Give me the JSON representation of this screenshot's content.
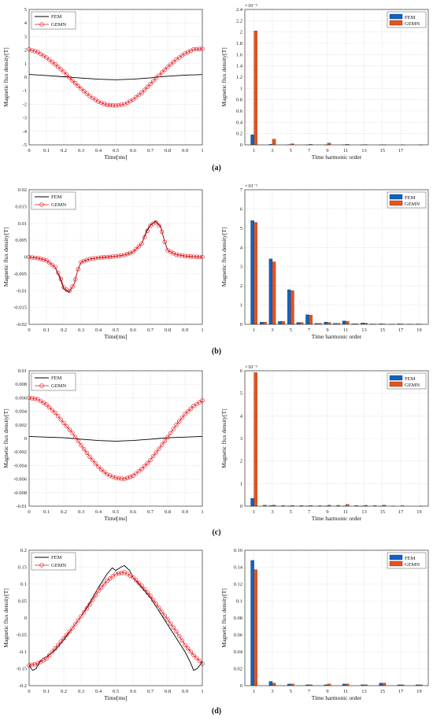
{
  "colors": {
    "fem_line": "#000000",
    "gemn_line": "#e8141b",
    "bar_fem": "#0f62c6",
    "bar_gemn": "#e8531c",
    "grid": "#d6d6d6"
  },
  "chart_data": [
    {
      "type": "line",
      "panel": "(a)",
      "xlabel": "Time[ms]",
      "ylabel": "Magnetic flux density[T]",
      "xlim": [
        0,
        1
      ],
      "ylim": [
        -5,
        5
      ],
      "grid": true,
      "legend": "top-left",
      "xticks": [
        "0",
        "0.1",
        "0.2",
        "0.3",
        "0.4",
        "0.5",
        "0.6",
        "0.7",
        "0.8",
        "0.9",
        "1"
      ],
      "yticks": [
        "-5",
        "-4",
        "-3",
        "-2",
        "-1",
        "0",
        "1",
        "2",
        "3",
        "4",
        "5"
      ],
      "series": [
        {
          "name": "FEM",
          "x": [
            0,
            0.1,
            0.2,
            0.25,
            0.3,
            0.4,
            0.5,
            0.6,
            0.7,
            0.75,
            0.8,
            0.9,
            1
          ],
          "y": [
            0.2,
            0.12,
            0.03,
            -0.02,
            -0.07,
            -0.15,
            -0.19,
            -0.15,
            -0.05,
            0.02,
            0.07,
            0.15,
            0.19
          ]
        },
        {
          "name": "GEMN",
          "x": [
            0,
            0.05,
            0.1,
            0.15,
            0.2,
            0.25,
            0.3,
            0.35,
            0.4,
            0.45,
            0.5,
            0.55,
            0.6,
            0.65,
            0.7,
            0.75,
            0.8,
            0.85,
            0.9,
            0.95,
            1
          ],
          "y": [
            2.05,
            1.85,
            1.45,
            0.95,
            0.4,
            -0.25,
            -0.85,
            -1.4,
            -1.8,
            -2.05,
            -2.1,
            -2.0,
            -1.65,
            -1.15,
            -0.5,
            0.15,
            0.75,
            1.3,
            1.75,
            2.05,
            2.1
          ]
        }
      ]
    },
    {
      "type": "bar",
      "panel": "(a)",
      "xlabel": "Time harmonic order",
      "ylabel": "Magnetic flux density[T]",
      "exponent": "×10⁻³",
      "ylim": [
        0,
        2.4
      ],
      "grid": true,
      "legend": "top-right",
      "categories": [
        1,
        2,
        3,
        4,
        5,
        6,
        7,
        8,
        9,
        10,
        11,
        12,
        13,
        14,
        15,
        16,
        17,
        18,
        19
      ],
      "xticks": [
        "1",
        "3",
        "5",
        "7",
        "9",
        "11",
        "13",
        "15",
        "17"
      ],
      "yticks": [
        "0",
        "0.2",
        "0.4",
        "0.6",
        "0.8",
        "1",
        "1.2",
        "1.4",
        "1.6",
        "1.8",
        "2",
        "2.2",
        "2.4"
      ],
      "series": [
        {
          "name": "FEM",
          "values": [
            0.18,
            0,
            0.01,
            0,
            0.005,
            0,
            0.002,
            0,
            0.003,
            0,
            0.001,
            0,
            0.001,
            0,
            0.001,
            0,
            0,
            0,
            0
          ]
        },
        {
          "name": "GEMN",
          "values": [
            2.02,
            0,
            0.1,
            0,
            0.02,
            0,
            0.01,
            0,
            0.03,
            0,
            0.01,
            0,
            0.005,
            0,
            0.003,
            0,
            0.002,
            0,
            0.001
          ]
        }
      ]
    },
    {
      "type": "line",
      "panel": "(b)",
      "xlabel": "Time[ms]",
      "ylabel": "Magnetic flux density[T]",
      "xlim": [
        0,
        1
      ],
      "ylim": [
        -0.02,
        0.02
      ],
      "grid": true,
      "legend": "top-left",
      "xticks": [
        "0",
        "0.1",
        "0.2",
        "0.3",
        "0.4",
        "0.5",
        "0.6",
        "0.7",
        "0.8",
        "0.9",
        "1"
      ],
      "yticks": [
        "-0.02",
        "-0.015",
        "-0.01",
        "-0.005",
        "0",
        "0.005",
        "0.01",
        "0.015",
        "0.02"
      ],
      "series": [
        {
          "name": "FEM",
          "x": [
            0,
            0.05,
            0.1,
            0.15,
            0.18,
            0.2,
            0.23,
            0.26,
            0.28,
            0.3,
            0.35,
            0.4,
            0.45,
            0.5,
            0.55,
            0.6,
            0.65,
            0.68,
            0.7,
            0.73,
            0.76,
            0.78,
            0.8,
            0.85,
            0.9,
            0.95,
            1
          ],
          "y": [
            0,
            -0.0003,
            -0.001,
            -0.003,
            -0.0065,
            -0.0095,
            -0.0105,
            -0.008,
            -0.004,
            -0.0015,
            -0.0006,
            -0.0002,
            0,
            0.0002,
            0.0006,
            0.0015,
            0.004,
            0.008,
            0.0095,
            0.0107,
            0.009,
            0.005,
            0.002,
            0.0007,
            0.0003,
            0.0001,
            0
          ]
        },
        {
          "name": "GEMN",
          "x": [
            0,
            0.05,
            0.1,
            0.15,
            0.18,
            0.2,
            0.23,
            0.26,
            0.28,
            0.3,
            0.35,
            0.4,
            0.45,
            0.5,
            0.55,
            0.6,
            0.65,
            0.68,
            0.7,
            0.73,
            0.76,
            0.78,
            0.8,
            0.85,
            0.9,
            0.95,
            1
          ],
          "y": [
            0,
            -0.0003,
            -0.001,
            -0.003,
            -0.006,
            -0.009,
            -0.0103,
            -0.008,
            -0.004,
            -0.0015,
            -0.0006,
            -0.0002,
            0,
            0.0002,
            0.0006,
            0.0015,
            0.004,
            0.0075,
            0.0093,
            0.0105,
            0.0088,
            0.005,
            0.002,
            0.0007,
            0.0003,
            0.0001,
            0
          ]
        }
      ]
    },
    {
      "type": "bar",
      "panel": "(b)",
      "xlabel": "Time harmonic order",
      "ylabel": "Magnetic flux density[T]",
      "exponent": "×10⁻³",
      "ylim": [
        0,
        7
      ],
      "grid": true,
      "legend": "top-right",
      "categories": [
        1,
        2,
        3,
        4,
        5,
        6,
        7,
        8,
        9,
        10,
        11,
        12,
        13,
        14,
        15,
        16,
        17,
        18,
        19
      ],
      "xticks": [
        "1",
        "3",
        "5",
        "7",
        "9",
        "11",
        "13",
        "15",
        "17",
        "19"
      ],
      "yticks": [
        "0",
        "1",
        "2",
        "3",
        "4",
        "5",
        "6",
        "7"
      ],
      "series": [
        {
          "name": "FEM",
          "values": [
            5.4,
            0.12,
            3.4,
            0.15,
            1.8,
            0.1,
            0.5,
            0.05,
            0.12,
            0.05,
            0.18,
            0.03,
            0.07,
            0.02,
            0.03,
            0.01,
            0.03,
            0.01,
            0.02
          ]
        },
        {
          "name": "GEMN",
          "values": [
            5.3,
            0.12,
            3.25,
            0.15,
            1.75,
            0.1,
            0.48,
            0.05,
            0.1,
            0.05,
            0.16,
            0.03,
            0.06,
            0.02,
            0.02,
            0.01,
            0.02,
            0.01,
            0.01
          ]
        }
      ]
    },
    {
      "type": "line",
      "panel": "(c)",
      "xlabel": "Time[ms]",
      "ylabel": "Magnetic flux density[T]",
      "xlim": [
        0,
        1
      ],
      "ylim": [
        -0.01,
        0.01
      ],
      "grid": true,
      "legend": "top-left",
      "xticks": [
        "0",
        "0.1",
        "0.2",
        "0.3",
        "0.4",
        "0.5",
        "0.6",
        "0.7",
        "0.8",
        "0.9",
        "1"
      ],
      "yticks": [
        "-0.01",
        "-0.008",
        "-0.006",
        "-0.004",
        "-0.002",
        "0",
        "0.002",
        "0.004",
        "0.006",
        "0.008",
        "0.01"
      ],
      "series": [
        {
          "name": "FEM",
          "x": [
            0,
            0.1,
            0.2,
            0.25,
            0.3,
            0.4,
            0.5,
            0.6,
            0.7,
            0.75,
            0.8,
            0.9,
            1
          ],
          "y": [
            0.0003,
            0.0002,
            0.0001,
            0,
            -0.0001,
            -0.0003,
            -0.0004,
            -0.0003,
            -0.0001,
            0,
            0.0001,
            0.0002,
            0.0003
          ]
        },
        {
          "name": "GEMN",
          "x": [
            0,
            0.05,
            0.1,
            0.15,
            0.2,
            0.25,
            0.3,
            0.35,
            0.4,
            0.45,
            0.5,
            0.55,
            0.6,
            0.65,
            0.7,
            0.75,
            0.8,
            0.85,
            0.9,
            0.95,
            1
          ],
          "y": [
            0.006,
            0.0058,
            0.005,
            0.0038,
            0.0023,
            0.0008,
            -0.001,
            -0.0027,
            -0.0042,
            -0.0053,
            -0.0058,
            -0.006,
            -0.0055,
            -0.0045,
            -0.0032,
            -0.0015,
            0.0002,
            0.002,
            0.0036,
            0.0048,
            0.0056
          ]
        }
      ]
    },
    {
      "type": "bar",
      "panel": "(c)",
      "xlabel": "Time harmonic order",
      "ylabel": "Magnetic flux density[T]",
      "exponent": "×10⁻³",
      "ylim": [
        0,
        6
      ],
      "grid": true,
      "legend": "top-right",
      "categories": [
        1,
        2,
        3,
        4,
        5,
        6,
        7,
        8,
        9,
        10,
        11,
        12,
        13,
        14,
        15,
        16,
        17,
        18,
        19
      ],
      "xticks": [
        "1",
        "3",
        "5",
        "7",
        "9",
        "11",
        "13",
        "15",
        "17",
        "19"
      ],
      "yticks": [
        "0",
        "1",
        "2",
        "3",
        "4",
        "5",
        "6"
      ],
      "series": [
        {
          "name": "FEM",
          "values": [
            0.35,
            0,
            0.02,
            0,
            0.01,
            0,
            0.01,
            0,
            0.01,
            0,
            0.01,
            0,
            0.005,
            0,
            0.005,
            0,
            0,
            0,
            0
          ]
        },
        {
          "name": "GEMN",
          "values": [
            5.92,
            0.05,
            0.05,
            0.03,
            0.03,
            0.03,
            0.03,
            0.02,
            0.05,
            0.04,
            0.08,
            0.03,
            0.04,
            0.03,
            0.05,
            0.01,
            0.02,
            0,
            0.01
          ]
        }
      ]
    },
    {
      "type": "line",
      "panel": "(d)",
      "xlabel": "Time[ms]",
      "ylabel": "Magnetic flux density[T]",
      "xlim": [
        0,
        1
      ],
      "ylim": [
        -0.2,
        0.2
      ],
      "grid": true,
      "legend": "top-left",
      "xticks": [
        "0",
        "0.1",
        "0.2",
        "0.3",
        "0.4",
        "0.5",
        "0.6",
        "0.7",
        "0.8",
        "0.9",
        "1"
      ],
      "yticks": [
        "-0.2",
        "-0.15",
        "-0.1",
        "-0.05",
        "0",
        "0.05",
        "0.1",
        "0.15",
        "0.2"
      ],
      "series": [
        {
          "name": "FEM",
          "x": [
            0,
            0.02,
            0.04,
            0.06,
            0.08,
            0.1,
            0.15,
            0.2,
            0.25,
            0.3,
            0.35,
            0.4,
            0.45,
            0.48,
            0.5,
            0.53,
            0.55,
            0.58,
            0.6,
            0.65,
            0.7,
            0.75,
            0.8,
            0.85,
            0.9,
            0.93,
            0.95,
            0.97,
            1
          ],
          "y": [
            -0.14,
            -0.155,
            -0.15,
            -0.13,
            -0.12,
            -0.115,
            -0.095,
            -0.065,
            -0.03,
            0.005,
            0.045,
            0.09,
            0.13,
            0.148,
            0.14,
            0.15,
            0.155,
            0.14,
            0.12,
            0.09,
            0.06,
            0.02,
            -0.02,
            -0.06,
            -0.1,
            -0.13,
            -0.155,
            -0.15,
            -0.13
          ]
        },
        {
          "name": "GEMN",
          "x": [
            0,
            0.05,
            0.1,
            0.15,
            0.2,
            0.25,
            0.3,
            0.35,
            0.4,
            0.45,
            0.5,
            0.55,
            0.6,
            0.65,
            0.7,
            0.75,
            0.8,
            0.85,
            0.9,
            0.95,
            1
          ],
          "y": [
            -0.14,
            -0.135,
            -0.12,
            -0.09,
            -0.06,
            -0.03,
            0.005,
            0.04,
            0.08,
            0.11,
            0.13,
            0.135,
            0.12,
            0.095,
            0.065,
            0.03,
            -0.005,
            -0.04,
            -0.08,
            -0.11,
            -0.135
          ]
        }
      ]
    },
    {
      "type": "bar",
      "panel": "(d)",
      "xlabel": "Time harmonic order",
      "ylabel": "Magnetic flux density[T]",
      "exponent": "",
      "ylim": [
        0,
        0.16
      ],
      "grid": true,
      "legend": "top-right",
      "categories": [
        1,
        2,
        3,
        4,
        5,
        6,
        7,
        8,
        9,
        10,
        11,
        12,
        13,
        14,
        15,
        16,
        17,
        18,
        19
      ],
      "xticks": [
        "1",
        "3",
        "5",
        "7",
        "9",
        "11",
        "13",
        "15",
        "17",
        "19"
      ],
      "yticks": [
        "0",
        "0.02",
        "0.04",
        "0.06",
        "0.08",
        "0.1",
        "0.12",
        "0.14",
        "0.16"
      ],
      "series": [
        {
          "name": "FEM",
          "values": [
            0.148,
            0,
            0.005,
            0,
            0.002,
            0,
            0.001,
            0,
            0.001,
            0,
            0.002,
            0,
            0.001,
            0,
            0.003,
            0,
            0.001,
            0,
            0.001
          ]
        },
        {
          "name": "GEMN",
          "values": [
            0.137,
            0,
            0.003,
            0,
            0.002,
            0,
            0.001,
            0,
            0.002,
            0,
            0.002,
            0,
            0.001,
            0,
            0.003,
            0,
            0.001,
            0,
            0.001
          ]
        }
      ]
    }
  ],
  "panels": [
    "(a)",
    "(b)",
    "(c)",
    "(d)"
  ]
}
